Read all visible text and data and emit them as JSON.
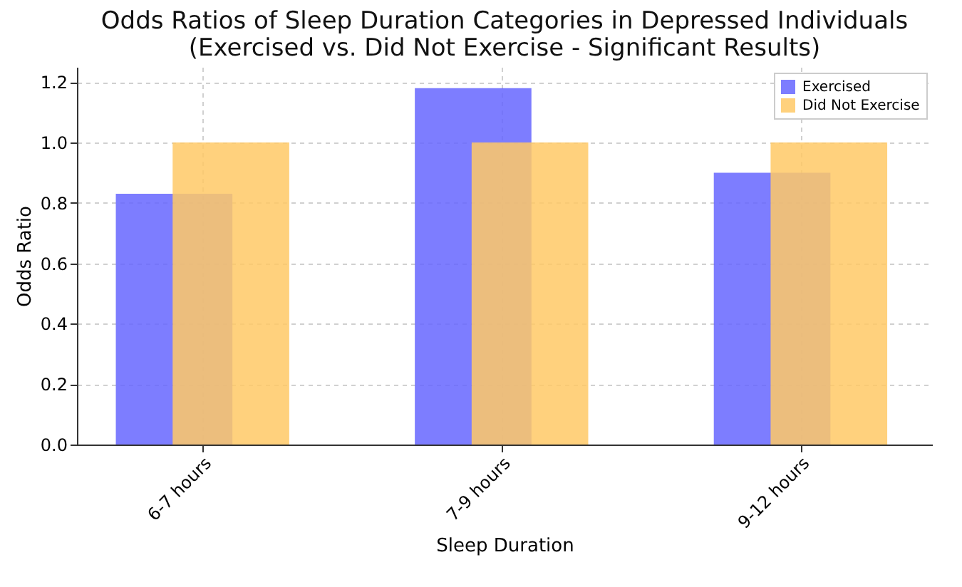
{
  "chart_data": {
    "type": "bar",
    "title": "Odds Ratios of Sleep Duration Categories in Depressed Individuals\n(Exercised vs. Did Not Exercise - Significant Results)",
    "xlabel": "Sleep Duration",
    "ylabel": "Odds Ratio",
    "categories": [
      "6-7 hours",
      "7-9 hours",
      "9-12 hours"
    ],
    "series": [
      {
        "name": "Exercised",
        "color": "#6666ff",
        "values": [
          0.83,
          1.18,
          0.9
        ]
      },
      {
        "name": "Did Not Exercise",
        "color": "#ffc966",
        "values": [
          1.0,
          1.0,
          1.0
        ]
      }
    ],
    "ylim": [
      0,
      1.25
    ],
    "yticks": [
      {
        "value": 0,
        "label": "0.0"
      },
      0.2,
      0.4,
      0.6,
      0.8,
      {
        "value": 1,
        "label": "1.0"
      },
      1.2
    ],
    "grid": true,
    "legend": "top right"
  }
}
